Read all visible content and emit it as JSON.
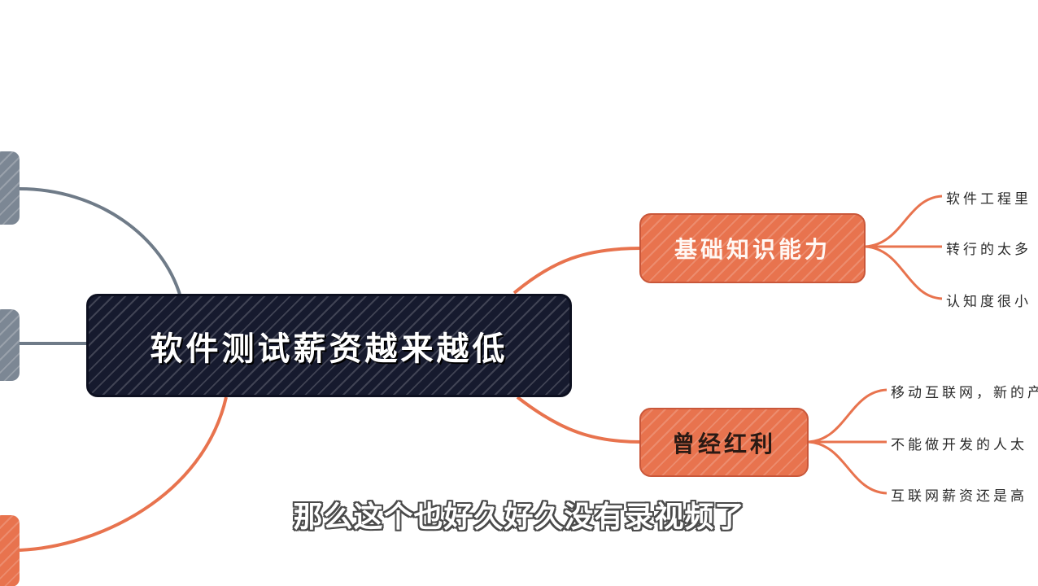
{
  "root": {
    "label": "软件测试薪资越来越低"
  },
  "branches": [
    {
      "id": "basic",
      "label": "基础知识能力",
      "color": "#e8734e",
      "leaves": [
        "软件工程里",
        "转行的太多",
        "认知度很小"
      ]
    },
    {
      "id": "bonus",
      "label": "曾经红利",
      "color": "#e8734e",
      "leaves": [
        "移动互联网，新的产",
        "不能做开发的人太",
        "互联网薪资还是高"
      ]
    }
  ],
  "colors": {
    "root_fill": "#161a2e",
    "orange": "#e8734e",
    "gray": "#7c8794",
    "link_gray": "#6f7b88"
  },
  "subtitle": "那么这个也好久好久没有录视频了"
}
